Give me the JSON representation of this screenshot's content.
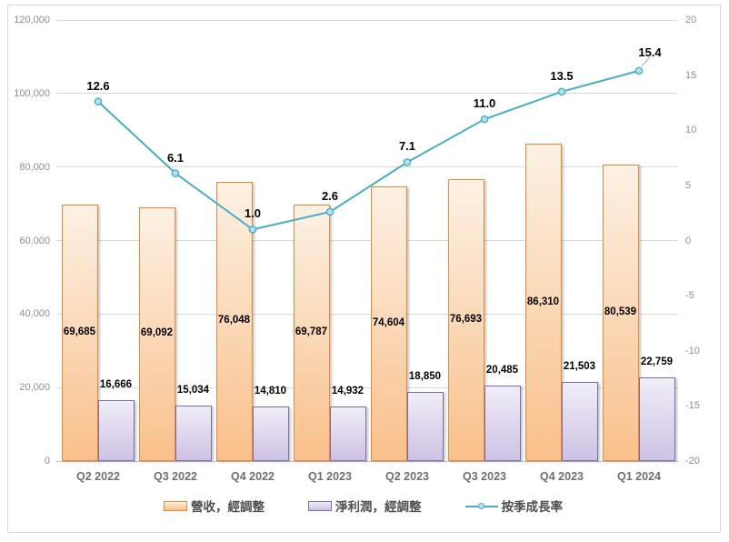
{
  "chart_data": {
    "type": "combo-bar-line",
    "title": "",
    "categories": [
      "Q2 2022",
      "Q3 2022",
      "Q4 2022",
      "Q1 2023",
      "Q2 2023",
      "Q3 2023",
      "Q4 2023",
      "Q1 2024"
    ],
    "series": [
      {
        "name": "營收，經調整",
        "type": "bar",
        "axis": "left",
        "values": [
          69685,
          69092,
          76048,
          69787,
          74604,
          76693,
          86310,
          80539
        ],
        "labels": [
          "69,685",
          "69,092",
          "76,048",
          "69,787",
          "74,604",
          "76,693",
          "86,310",
          "80,539"
        ],
        "fill_top": "#FDF1E4",
        "fill_bottom": "#F9C08B",
        "border_color": "#E6893B"
      },
      {
        "name": "淨利潤，經調整",
        "type": "bar",
        "axis": "left",
        "values": [
          16666,
          15034,
          14810,
          14932,
          18850,
          20485,
          21503,
          22759
        ],
        "labels": [
          "16,666",
          "15,034",
          "14,810",
          "14,932",
          "18,850",
          "20,485",
          "21,503",
          "22,759"
        ],
        "fill_top": "#F1EDF8",
        "fill_bottom": "#CDC2E4",
        "border_color": "#7E6CA8"
      },
      {
        "name": "按季成長率",
        "type": "line",
        "axis": "right",
        "values": [
          12.6,
          6.1,
          1.0,
          2.6,
          7.1,
          11.0,
          13.5,
          15.4
        ],
        "labels": [
          "12.6",
          "6.1",
          "1.0",
          "2.6",
          "7.1",
          "11.0",
          "13.5",
          "15.4"
        ],
        "line_color": "#4BACC6",
        "marker_fill": "#B4E0EF",
        "leader_line_color": "#A6A6A6"
      }
    ],
    "left_axis": {
      "min": 0,
      "max": 120000,
      "step": 20000,
      "tick_labels": [
        "0",
        "20,000",
        "40,000",
        "60,000",
        "80,000",
        "100,000",
        "120,000"
      ]
    },
    "right_axis": {
      "min": -20,
      "max": 20,
      "step": 5,
      "tick_labels": [
        "-20",
        "-15",
        "-10",
        "-5",
        "0",
        "5",
        "10",
        "15",
        "20"
      ]
    },
    "grid": true,
    "gridline_color": "#D9D9D9",
    "axis_label_color": "#8E8E8E",
    "category_label_color": "#6E6E6E",
    "legend_position": "bottom"
  }
}
